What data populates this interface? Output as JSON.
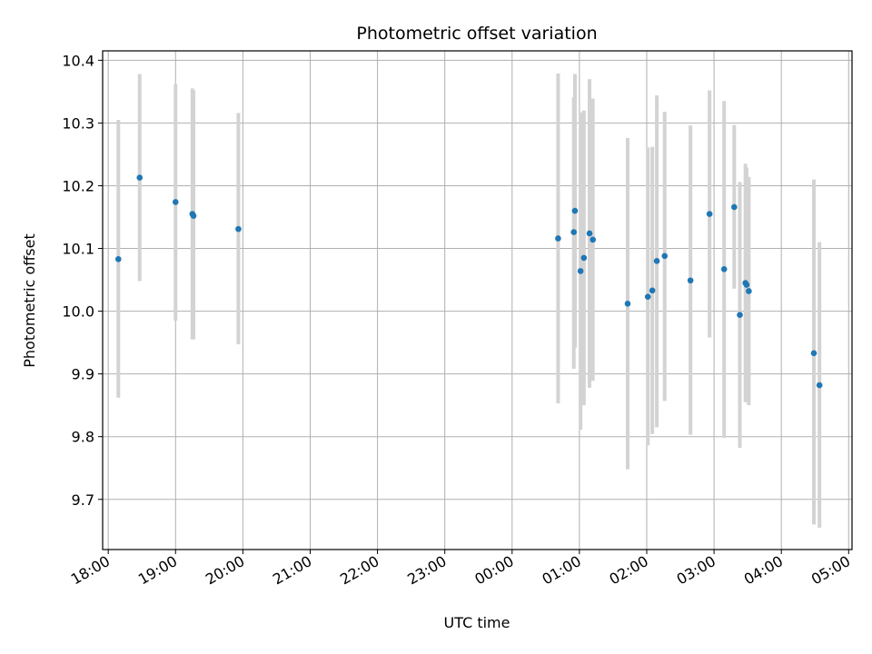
{
  "chart_data": {
    "type": "scatter",
    "title": "Photometric offset variation",
    "xlabel": "UTC time",
    "ylabel": "Photometric offset",
    "x_unit": "UTC time of day (night spanning midnight)",
    "xlim": [
      "17:55",
      "05:03"
    ],
    "ylim": [
      9.62,
      10.415
    ],
    "grid": true,
    "x_ticks": [
      "18:00",
      "19:00",
      "20:00",
      "21:00",
      "22:00",
      "23:00",
      "00:00",
      "01:00",
      "02:00",
      "03:00",
      "04:00",
      "05:00"
    ],
    "y_ticks": [
      9.7,
      9.8,
      9.9,
      10.0,
      10.1,
      10.2,
      10.3,
      10.4
    ],
    "y_tick_labels": [
      "9.7",
      "9.8",
      "9.9",
      "10.0",
      "10.1",
      "10.2",
      "10.3",
      "10.4"
    ],
    "colors": {
      "point": "#1f77b4",
      "errorbar": "#d3d3d3",
      "grid": "#b0b0b0"
    },
    "points": [
      {
        "x": "18:09",
        "y": 10.083,
        "lo": 9.862,
        "hi": 10.305
      },
      {
        "x": "18:28",
        "y": 10.213,
        "lo": 10.048,
        "hi": 10.378
      },
      {
        "x": "19:00",
        "y": 10.174,
        "lo": 9.985,
        "hi": 10.362
      },
      {
        "x": "19:15",
        "y": 10.155,
        "lo": 9.955,
        "hi": 10.355
      },
      {
        "x": "19:16",
        "y": 10.152,
        "lo": 9.955,
        "hi": 10.352
      },
      {
        "x": "19:56",
        "y": 10.131,
        "lo": 9.947,
        "hi": 10.316
      },
      {
        "x": "00:41",
        "y": 10.116,
        "lo": 9.853,
        "hi": 10.379
      },
      {
        "x": "00:55",
        "y": 10.126,
        "lo": 9.908,
        "hi": 10.341
      },
      {
        "x": "00:56",
        "y": 10.16,
        "lo": 9.942,
        "hi": 10.378
      },
      {
        "x": "01:01",
        "y": 10.064,
        "lo": 9.811,
        "hi": 10.317
      },
      {
        "x": "01:04",
        "y": 10.085,
        "lo": 9.85,
        "hi": 10.32
      },
      {
        "x": "01:09",
        "y": 10.124,
        "lo": 9.878,
        "hi": 10.37
      },
      {
        "x": "01:12",
        "y": 10.114,
        "lo": 9.889,
        "hi": 10.339
      },
      {
        "x": "01:43",
        "y": 10.012,
        "lo": 9.748,
        "hi": 10.276
      },
      {
        "x": "02:01",
        "y": 10.023,
        "lo": 9.786,
        "hi": 10.261
      },
      {
        "x": "02:05",
        "y": 10.033,
        "lo": 9.804,
        "hi": 10.262
      },
      {
        "x": "02:09",
        "y": 10.08,
        "lo": 9.815,
        "hi": 10.344
      },
      {
        "x": "02:16",
        "y": 10.088,
        "lo": 9.857,
        "hi": 10.318
      },
      {
        "x": "02:39",
        "y": 10.049,
        "lo": 9.803,
        "hi": 10.296
      },
      {
        "x": "02:56",
        "y": 10.155,
        "lo": 9.958,
        "hi": 10.352
      },
      {
        "x": "03:09",
        "y": 10.067,
        "lo": 9.798,
        "hi": 10.335
      },
      {
        "x": "03:18",
        "y": 10.166,
        "lo": 10.036,
        "hi": 10.297
      },
      {
        "x": "03:23",
        "y": 9.994,
        "lo": 9.782,
        "hi": 10.206
      },
      {
        "x": "03:28",
        "y": 10.045,
        "lo": 9.855,
        "hi": 10.235
      },
      {
        "x": "03:29",
        "y": 10.042,
        "lo": 9.855,
        "hi": 10.229
      },
      {
        "x": "03:31",
        "y": 10.032,
        "lo": 9.85,
        "hi": 10.214
      },
      {
        "x": "04:29",
        "y": 9.933,
        "lo": 9.66,
        "hi": 10.21
      },
      {
        "x": "04:34",
        "y": 9.882,
        "lo": 9.655,
        "hi": 10.11
      }
    ]
  }
}
